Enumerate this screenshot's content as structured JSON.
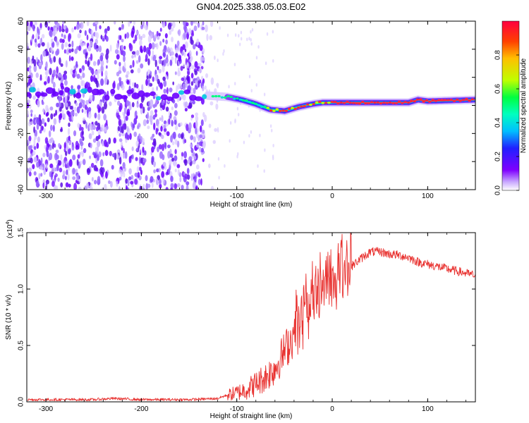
{
  "title": "GN04.2025.338.05.03.E02",
  "chart_data": [
    {
      "type": "heatmap",
      "name": "spectrogram",
      "xlabel": "Height of straight line (km)",
      "ylabel": "Frequency (Hz)",
      "xlim": [
        -320,
        150
      ],
      "ylim": [
        -60,
        60
      ],
      "xticks": [
        -300,
        -200,
        -100,
        0,
        100
      ],
      "yticks": [
        60,
        40,
        20,
        0,
        -20,
        -40,
        -60
      ],
      "xtick_labels": [
        "-300",
        "-200",
        "-100",
        "0",
        "100"
      ],
      "ytick_labels": [
        "60",
        "40",
        "20",
        "0",
        "-20",
        "-40",
        "-60"
      ],
      "ridge_frequency": [
        [
          -300,
          9
        ],
        [
          -270,
          9
        ],
        [
          -240,
          8
        ],
        [
          -200,
          8
        ],
        [
          -160,
          7
        ],
        [
          -130,
          7
        ],
        [
          -110,
          6
        ],
        [
          -95,
          4
        ],
        [
          -80,
          1
        ],
        [
          -65,
          -3
        ],
        [
          -50,
          -4
        ],
        [
          -35,
          -1
        ],
        [
          -20,
          1
        ],
        [
          -10,
          2
        ],
        [
          0,
          2
        ],
        [
          50,
          2
        ],
        [
          80,
          2
        ],
        [
          90,
          4
        ],
        [
          100,
          3
        ],
        [
          150,
          4
        ]
      ],
      "colorbar": {
        "label": "Normalized spectral amplitude",
        "range": [
          0,
          1
        ],
        "ticks": [
          0.0,
          0.2,
          0.4,
          0.6,
          0.8
        ],
        "tick_labels": [
          "0.0",
          "0.2",
          "0.4",
          "0.6",
          "0.8"
        ],
        "colors": [
          "#ffffff",
          "#c8a8ff",
          "#7f00ff",
          "#2020ff",
          "#00bfff",
          "#00ffbf",
          "#00ff40",
          "#bfff00",
          "#ffbf00",
          "#ff4000",
          "#ff0040"
        ]
      }
    },
    {
      "type": "line",
      "name": "snr",
      "xlabel": "Height of straight line (km)",
      "ylabel": "SNR (10 * v/v)",
      "scale_note_base": "(x10",
      "scale_note_exp": "4",
      "scale_note_end": ")",
      "xlim": [
        -320,
        150
      ],
      "ylim": [
        0,
        1.5
      ],
      "xticks": [
        -300,
        -200,
        -100,
        0,
        100
      ],
      "yticks": [
        0.0,
        0.5,
        1.0,
        1.5
      ],
      "xtick_labels": [
        "-300",
        "-200",
        "-100",
        "0",
        "100"
      ],
      "ytick_labels": [
        "0.0",
        "0.5",
        "1.0",
        "1.5"
      ],
      "color": "#e8312f",
      "envelope": [
        [
          -320,
          0.02
        ],
        [
          -250,
          0.02
        ],
        [
          -230,
          0.03
        ],
        [
          -200,
          0.02
        ],
        [
          -150,
          0.02
        ],
        [
          -120,
          0.03
        ],
        [
          -110,
          0.06
        ],
        [
          -100,
          0.08
        ],
        [
          -90,
          0.11
        ],
        [
          -80,
          0.16
        ],
        [
          -70,
          0.22
        ],
        [
          -60,
          0.3
        ],
        [
          -50,
          0.45
        ],
        [
          -40,
          0.6
        ],
        [
          -30,
          0.72
        ],
        [
          -20,
          0.88
        ],
        [
          -10,
          0.98
        ],
        [
          0,
          1.02
        ],
        [
          10,
          1.1
        ],
        [
          20,
          1.2
        ],
        [
          30,
          1.27
        ],
        [
          40,
          1.33
        ],
        [
          50,
          1.33
        ],
        [
          60,
          1.31
        ],
        [
          70,
          1.3
        ],
        [
          80,
          1.28
        ],
        [
          90,
          1.24
        ],
        [
          100,
          1.22
        ],
        [
          110,
          1.2
        ],
        [
          120,
          1.18
        ],
        [
          130,
          1.16
        ],
        [
          140,
          1.14
        ],
        [
          150,
          1.12
        ]
      ]
    }
  ]
}
